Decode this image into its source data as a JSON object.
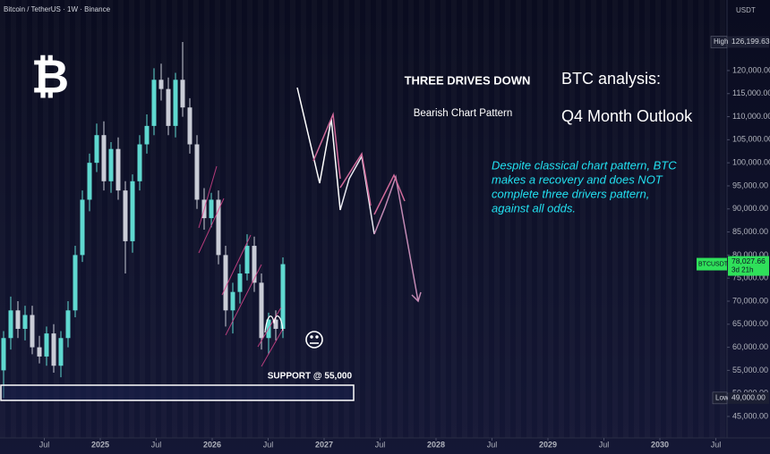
{
  "chart_data": {
    "type": "candlestick",
    "title": "Bitcoin / TetherUS · 1W · Binance",
    "currency": "USDT",
    "logo": "₿",
    "headline": "THREE DRIVES DOWN",
    "subheadline": "Bearish Chart Pattern",
    "analysis_title": "BTC analysis:",
    "analysis_subtitle": "Q4 Month Outlook",
    "note_lines": [
      "Despite classical chart pattern, BTC",
      "makes a recovery and does NOT",
      "complete three drivers pattern,",
      "against all odds."
    ],
    "support_label": "SUPPORT @ 55,000",
    "up_color": "#5fd8d0",
    "down_color": "#c9ccd6",
    "xlim": [
      2024.104,
      2030.6
    ],
    "ylim": [
      40350,
      135300
    ],
    "xticks": [
      {
        "value": 2024.5,
        "label": "Jul"
      },
      2025,
      {
        "value": 2025.5,
        "label": "Jul"
      },
      2026,
      {
        "value": 2026.5,
        "label": "Jul"
      },
      2027,
      {
        "value": 2027.5,
        "label": "Jul"
      },
      2028,
      {
        "value": 2028.5,
        "label": "Jul"
      },
      2029,
      {
        "value": 2029.5,
        "label": "Jul"
      },
      2030,
      {
        "value": 2030.5,
        "label": "Jul"
      }
    ],
    "yticks": [
      {
        "value": 45000,
        "label": "45,000.00"
      },
      {
        "value": 50000,
        "label": "50,000.00"
      },
      {
        "value": 55000,
        "label": "55,000.00"
      },
      {
        "value": 60000,
        "label": "60,000.00"
      },
      {
        "value": 65000,
        "label": "65,000.00"
      },
      {
        "value": 70000,
        "label": "70,000.00"
      },
      {
        "value": 75000,
        "label": "75,000.00"
      },
      {
        "value": 80000,
        "label": "80,000.00"
      },
      {
        "value": 85000,
        "label": "85,000.00"
      },
      {
        "value": 90000,
        "label": "90,000.00"
      },
      {
        "value": 95000,
        "label": "95,000.00"
      },
      {
        "value": 100000,
        "label": "100,000.00"
      },
      {
        "value": 105000,
        "label": "105,000.00"
      },
      {
        "value": 110000,
        "label": "110,000.00"
      },
      {
        "value": 115000,
        "label": "115,000.00"
      },
      {
        "value": 120000,
        "label": "120,000.00"
      }
    ],
    "x": [
      2024.136,
      2024.2,
      2024.264,
      2024.328,
      2024.392,
      2024.456,
      2024.52,
      2024.584,
      2024.648,
      2024.712,
      2024.776,
      2024.84,
      2024.904,
      2024.968,
      2025.032,
      2025.096,
      2025.16,
      2025.224,
      2025.288,
      2025.352,
      2025.416,
      2025.48,
      2025.544,
      2025.608,
      2025.672,
      2025.736,
      2025.8,
      2025.864,
      2025.928,
      2025.992,
      2026.056,
      2026.12,
      2026.184,
      2026.248,
      2026.312,
      2026.376,
      2026.44,
      2026.504,
      2026.568,
      2026.632
    ],
    "open": [
      55000,
      62000,
      68000,
      64000,
      67000,
      60000,
      58000,
      63000,
      56000,
      62000,
      68000,
      80000,
      92000,
      100000,
      106000,
      96000,
      103000,
      94000,
      83000,
      96000,
      104000,
      108000,
      118000,
      116000,
      108000,
      118000,
      112000,
      104000,
      92000,
      88000,
      92000,
      80000,
      68000,
      72000,
      76000,
      82000,
      74000,
      62000,
      66000,
      64000
    ],
    "high": [
      63500,
      71000,
      70000,
      69000,
      69000,
      62500,
      64500,
      65000,
      63500,
      70000,
      82000,
      94000,
      102000,
      108500,
      109000,
      104500,
      105500,
      96000,
      97500,
      106000,
      110500,
      120500,
      121500,
      118500,
      119500,
      126199.63,
      114000,
      106000,
      94500,
      93500,
      94000,
      82000,
      74000,
      78000,
      84500,
      84000,
      76000,
      67500,
      68000,
      79500
    ],
    "low": [
      49000,
      59500,
      62000,
      61500,
      58500,
      56500,
      56000,
      54500,
      53500,
      60000,
      66500,
      78500,
      89500,
      98000,
      94000,
      93500,
      92000,
      76000,
      80500,
      94000,
      102000,
      106000,
      113500,
      106000,
      105500,
      110000,
      102000,
      90000,
      85500,
      86000,
      78000,
      64500,
      63000,
      69500,
      74500,
      72000,
      59500,
      58500,
      61500,
      62000
    ],
    "close": [
      62000,
      68000,
      64000,
      67000,
      60000,
      58000,
      63000,
      56000,
      62000,
      68000,
      80000,
      92000,
      100000,
      106000,
      96000,
      103000,
      94000,
      83000,
      96000,
      104000,
      108000,
      118000,
      116000,
      108000,
      118000,
      112000,
      104000,
      92000,
      88000,
      92000,
      80000,
      68000,
      72000,
      76000,
      82000,
      74000,
      62000,
      66000,
      64000,
      78027.66
    ],
    "high_marker": {
      "label": "High",
      "value": 126199.63,
      "value_label": "126,199.63"
    },
    "low_marker": {
      "label": "Low",
      "value": 49000,
      "value_label": "49,000.00"
    },
    "price_marker": {
      "label": "BTCUSDT",
      "value": 78027.66,
      "value_label": "78,027.66",
      "countdown": "3d 21h"
    }
  }
}
